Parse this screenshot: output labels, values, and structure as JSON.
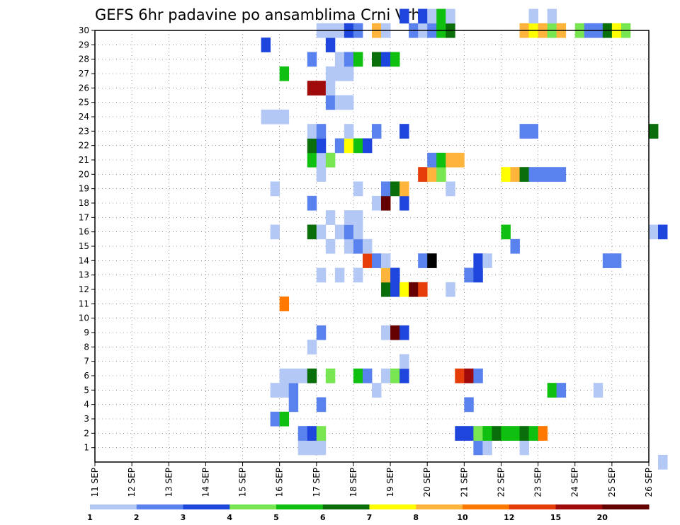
{
  "chart_data": {
    "type": "heatmap",
    "title": "GEFS 6hr padavine po ansamblima Crni Vrh",
    "x_tick_labels": [
      "11 SEP",
      "12 SEP",
      "13 SEP",
      "14 SEP",
      "15 SEP",
      "16 SEP",
      "17 SEP",
      "18 SEP",
      "19 SEP",
      "20 SEP",
      "21 SEP",
      "22 SEP",
      "23 SEP",
      "24 SEP",
      "25 SEP",
      "26 SEP"
    ],
    "y_tick_labels": [
      "1",
      "2",
      "3",
      "4",
      "5",
      "6",
      "7",
      "8",
      "9",
      "10",
      "11",
      "12",
      "13",
      "14",
      "15",
      "16",
      "17",
      "18",
      "19",
      "20",
      "21",
      "22",
      "23",
      "24",
      "25",
      "26",
      "27",
      "28",
      "29",
      "30"
    ],
    "x_unit": "6-hour step (4 per day), step 0 = 11 SEP 00z",
    "ylim": [
      0,
      30
    ],
    "grid": true,
    "colorbar": {
      "labels": [
        "1",
        "2",
        "3",
        "4",
        "5",
        "6",
        "7",
        "8",
        "10",
        "12",
        "15",
        "20"
      ],
      "colors": [
        "#b4c8f5",
        "#5a82ee",
        "#1e46dc",
        "#78e650",
        "#10c010",
        "#0a6e0a",
        "#ffff00",
        "#ffb43c",
        "#ff7800",
        "#e63c0a",
        "#a00a0a",
        "#640000"
      ]
    },
    "cells": [
      [
        41,
        1,
        2
      ],
      [
        41,
        2,
        1
      ],
      [
        42,
        1,
        1
      ],
      [
        42,
        2,
        4
      ],
      [
        44,
        2,
        1
      ],
      [
        46,
        1,
        1
      ],
      [
        61,
        0,
        1
      ],
      [
        22,
        1,
        1
      ],
      [
        22,
        2,
        2
      ],
      [
        23,
        1,
        1
      ],
      [
        23,
        2,
        3
      ],
      [
        24,
        1,
        1
      ],
      [
        24,
        2,
        4
      ],
      [
        39,
        2,
        3
      ],
      [
        40,
        2,
        3
      ],
      [
        41,
        2,
        4
      ],
      [
        42,
        2,
        5
      ],
      [
        43,
        2,
        6
      ],
      [
        44,
        2,
        5
      ],
      [
        45,
        2,
        5
      ],
      [
        46,
        2,
        6
      ],
      [
        47,
        2,
        5
      ],
      [
        48,
        2,
        9
      ],
      [
        19,
        3,
        2
      ],
      [
        20,
        3,
        5
      ],
      [
        21,
        4,
        2
      ],
      [
        24,
        4,
        2
      ],
      [
        40,
        4,
        2
      ],
      [
        19,
        5,
        1
      ],
      [
        20,
        5,
        1
      ],
      [
        21,
        5,
        2
      ],
      [
        30,
        5,
        1
      ],
      [
        49,
        5,
        5
      ],
      [
        50,
        5,
        2
      ],
      [
        54,
        5,
        1
      ],
      [
        20,
        6,
        1
      ],
      [
        21,
        6,
        1
      ],
      [
        22,
        6,
        1
      ],
      [
        23,
        6,
        6
      ],
      [
        25,
        6,
        4
      ],
      [
        28,
        6,
        5
      ],
      [
        29,
        6,
        2
      ],
      [
        31,
        6,
        1
      ],
      [
        32,
        6,
        4
      ],
      [
        33,
        6,
        3
      ],
      [
        39,
        6,
        10
      ],
      [
        40,
        6,
        11
      ],
      [
        41,
        6,
        2
      ],
      [
        33,
        7,
        1
      ],
      [
        23,
        8,
        1
      ],
      [
        24,
        9,
        2
      ],
      [
        31,
        9,
        1
      ],
      [
        32,
        9,
        12
      ],
      [
        33,
        9,
        3
      ],
      [
        20,
        11,
        9
      ],
      [
        31,
        12,
        6
      ],
      [
        32,
        12,
        3
      ],
      [
        33,
        12,
        7
      ],
      [
        34,
        12,
        12
      ],
      [
        35,
        12,
        10
      ],
      [
        38,
        12,
        1
      ],
      [
        24,
        13,
        1
      ],
      [
        26,
        13,
        1
      ],
      [
        28,
        13,
        1
      ],
      [
        31,
        13,
        8
      ],
      [
        32,
        13,
        3
      ],
      [
        40,
        13,
        2
      ],
      [
        41,
        13,
        3
      ],
      [
        29,
        14,
        10
      ],
      [
        30,
        14,
        2
      ],
      [
        31,
        14,
        1
      ],
      [
        35,
        14,
        2
      ],
      [
        36,
        14,
        13
      ],
      [
        41,
        14,
        3
      ],
      [
        42,
        14,
        1
      ],
      [
        55,
        14,
        2
      ],
      [
        56,
        14,
        2
      ],
      [
        25,
        15,
        1
      ],
      [
        27,
        15,
        1
      ],
      [
        28,
        15,
        2
      ],
      [
        29,
        15,
        1
      ],
      [
        45,
        15,
        2
      ],
      [
        19,
        16,
        1
      ],
      [
        23,
        16,
        6
      ],
      [
        24,
        16,
        1
      ],
      [
        26,
        16,
        1
      ],
      [
        27,
        16,
        2
      ],
      [
        28,
        16,
        1
      ],
      [
        44,
        16,
        5
      ],
      [
        60,
        16,
        1
      ],
      [
        61,
        16,
        3
      ],
      [
        25,
        17,
        1
      ],
      [
        27,
        17,
        1
      ],
      [
        28,
        17,
        1
      ],
      [
        23,
        18,
        2
      ],
      [
        30,
        18,
        1
      ],
      [
        31,
        18,
        12
      ],
      [
        33,
        18,
        3
      ],
      [
        19,
        19,
        1
      ],
      [
        28,
        19,
        1
      ],
      [
        31,
        19,
        2
      ],
      [
        32,
        19,
        6
      ],
      [
        33,
        19,
        8
      ],
      [
        38,
        19,
        1
      ],
      [
        24,
        20,
        1
      ],
      [
        35,
        20,
        10
      ],
      [
        36,
        20,
        8
      ],
      [
        37,
        20,
        4
      ],
      [
        44,
        20,
        7
      ],
      [
        45,
        20,
        8
      ],
      [
        46,
        20,
        6
      ],
      [
        47,
        20,
        2
      ],
      [
        48,
        20,
        2
      ],
      [
        49,
        20,
        2
      ],
      [
        50,
        20,
        2
      ],
      [
        23,
        21,
        5
      ],
      [
        24,
        21,
        1
      ],
      [
        25,
        21,
        1
      ],
      [
        25,
        21,
        4
      ],
      [
        36,
        21,
        2
      ],
      [
        37,
        21,
        5
      ],
      [
        38,
        21,
        8
      ],
      [
        39,
        21,
        8
      ],
      [
        23,
        22,
        6
      ],
      [
        24,
        22,
        3
      ],
      [
        26,
        22,
        2
      ],
      [
        27,
        22,
        7
      ],
      [
        28,
        22,
        5
      ],
      [
        29,
        22,
        3
      ],
      [
        23,
        23,
        1
      ],
      [
        24,
        23,
        2
      ],
      [
        27,
        23,
        1
      ],
      [
        30,
        23,
        2
      ],
      [
        33,
        23,
        3
      ],
      [
        46,
        23,
        2
      ],
      [
        47,
        23,
        2
      ],
      [
        60,
        23,
        6
      ],
      [
        18,
        24,
        1
      ],
      [
        19,
        24,
        1
      ],
      [
        20,
        24,
        1
      ],
      [
        25,
        25,
        2
      ],
      [
        26,
        25,
        1
      ],
      [
        27,
        25,
        1
      ],
      [
        23,
        26,
        11
      ],
      [
        24,
        26,
        11
      ],
      [
        25,
        26,
        1
      ],
      [
        25,
        27,
        1
      ],
      [
        26,
        27,
        1
      ],
      [
        27,
        27,
        1
      ],
      [
        20,
        27,
        5
      ],
      [
        23,
        28,
        2
      ],
      [
        26,
        28,
        1
      ],
      [
        27,
        28,
        2
      ],
      [
        28,
        28,
        5
      ],
      [
        30,
        28,
        6
      ],
      [
        31,
        28,
        3
      ],
      [
        32,
        28,
        5
      ],
      [
        18,
        29,
        3
      ],
      [
        25,
        29,
        3
      ],
      [
        24,
        30,
        1
      ],
      [
        25,
        30,
        1
      ],
      [
        26,
        30,
        1
      ],
      [
        27,
        30,
        3
      ],
      [
        28,
        30,
        2
      ],
      [
        30,
        30,
        8
      ],
      [
        31,
        30,
        1
      ],
      [
        34,
        30,
        2
      ],
      [
        35,
        30,
        1
      ],
      [
        36,
        30,
        2
      ],
      [
        37,
        30,
        5
      ],
      [
        38,
        30,
        6
      ],
      [
        46,
        30,
        8
      ],
      [
        47,
        30,
        7
      ],
      [
        48,
        30,
        8
      ],
      [
        49,
        30,
        4
      ],
      [
        50,
        30,
        8
      ],
      [
        52,
        30,
        4
      ],
      [
        53,
        30,
        2
      ],
      [
        54,
        30,
        2
      ],
      [
        55,
        30,
        6
      ],
      [
        56,
        30,
        7
      ],
      [
        57,
        30,
        4
      ],
      [
        33,
        31,
        3
      ],
      [
        35,
        31,
        3
      ],
      [
        36,
        31,
        1
      ],
      [
        37,
        31,
        5
      ],
      [
        38,
        31,
        1
      ],
      [
        47,
        31,
        1
      ],
      [
        49,
        31,
        1
      ]
    ]
  }
}
